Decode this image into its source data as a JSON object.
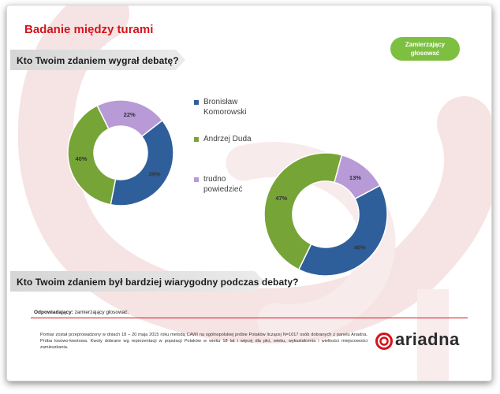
{
  "title": "Badanie między turami",
  "questions": {
    "q1": "Kto Twoim zdaniem wygrał debatę?",
    "q2": "Kto Twoim zdaniem był bardziej wiarygodny podczas debaty?"
  },
  "filter_pill": [
    "Zamierzający",
    "głosować"
  ],
  "legend": {
    "items": [
      {
        "label_lines": [
          "Bronisław",
          "Komorowski"
        ],
        "color": "#2f5f9a"
      },
      {
        "label_lines": [
          "Andrzej Duda"
        ],
        "color": "#77a437"
      },
      {
        "label_lines": [
          "trudno",
          "powiedzieć"
        ],
        "color": "#b79ad6"
      }
    ]
  },
  "chart_data": [
    {
      "type": "pie",
      "subtype": "donut",
      "question": "Kto Twoim zdaniem wygrał debatę?",
      "categories": [
        "Bronisław Komorowski",
        "Andrzej Duda",
        "trudno powiedzieć"
      ],
      "values": [
        39,
        40,
        22
      ],
      "labels": [
        "39%",
        "40%",
        "22%"
      ],
      "colors": [
        "#2f5f9a",
        "#77a437",
        "#b79ad6"
      ]
    },
    {
      "type": "pie",
      "subtype": "donut",
      "question": "Kto Twoim zdaniem był bardziej wiarygodny podczas debaty?",
      "categories": [
        "Bronisław Komorowski",
        "Andrzej Duda",
        "trudno powiedzieć"
      ],
      "values": [
        40,
        47,
        13
      ],
      "labels": [
        "40%",
        "47%",
        "13%"
      ],
      "colors": [
        "#2f5f9a",
        "#77a437",
        "#b79ad6"
      ]
    }
  ],
  "respondents": {
    "label": "Odpowiadający:",
    "value": "zamierzający głosować."
  },
  "footnote": "Pomiar został przeprowadzony w dniach 18 – 20 maja 2015 roku metodą CAWI na ogólnopolskiej próbie Polaków liczącej N=1017 osób dobranych z panelu Ariadna. Próba losowo-kwotowa. Kwoty dobrane wg reprezentacji w populacji Polaków w wieku 18 lat i więcej dla płci, wieku, wykształcenia i wielkości miejscowości zamieszkania.",
  "logo": {
    "text": "ariadna",
    "color": "#d4141b"
  }
}
